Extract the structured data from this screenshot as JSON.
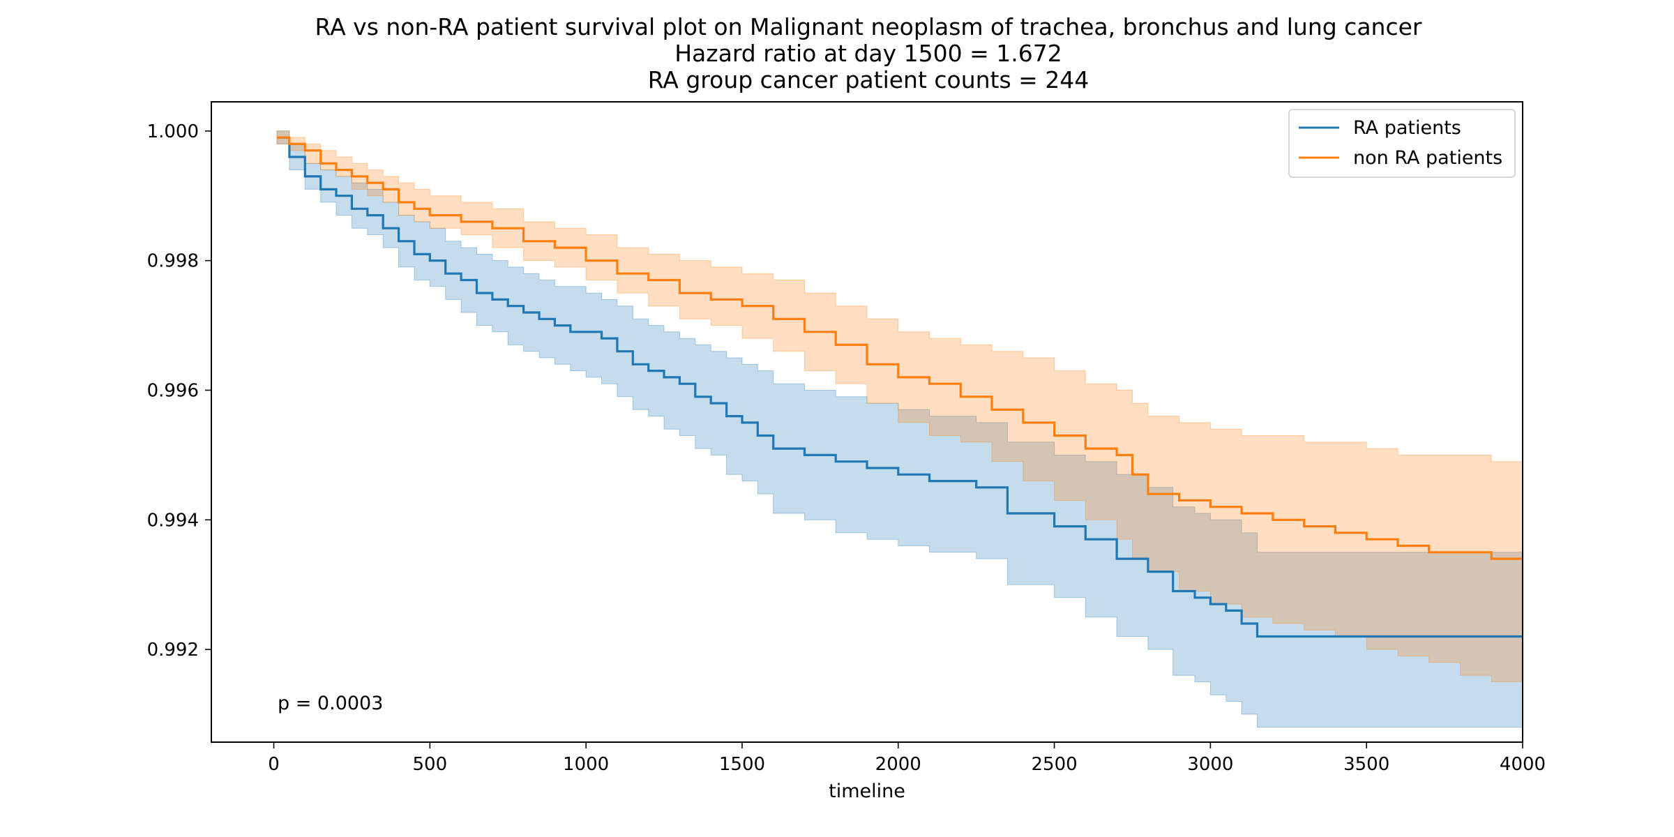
{
  "chart_data": {
    "type": "line",
    "title_lines": [
      "RA vs non-RA patient survival plot on Malignant neoplasm of trachea, bronchus and lung cancer",
      "Hazard ratio at day 1500 = 1.672",
      "RA group cancer patient counts = 244"
    ],
    "xlabel": "timeline",
    "ylabel": "",
    "xlim": [
      -200,
      4000
    ],
    "ylim": [
      0.99057,
      1.00045
    ],
    "x_ticks": [
      0,
      500,
      1000,
      1500,
      2000,
      2500,
      3000,
      3500,
      4000
    ],
    "y_ticks": [
      0.992,
      0.994,
      0.996,
      0.998,
      1.0
    ],
    "x_tick_labels": [
      "0",
      "500",
      "1000",
      "1500",
      "2000",
      "2500",
      "3000",
      "3500",
      "4000"
    ],
    "y_tick_labels": [
      "0.992",
      "0.994",
      "0.996",
      "0.998",
      "1.000"
    ],
    "grid": false,
    "legend_position": "top-right",
    "annotation": "p = 0.0003",
    "series": [
      {
        "name": "RA patients",
        "color": "#1f77b4",
        "x": [
          10,
          50,
          100,
          150,
          200,
          250,
          300,
          350,
          400,
          450,
          500,
          550,
          600,
          650,
          700,
          750,
          800,
          850,
          900,
          950,
          1000,
          1050,
          1100,
          1150,
          1200,
          1250,
          1300,
          1350,
          1400,
          1450,
          1500,
          1550,
          1600,
          1700,
          1800,
          1900,
          2000,
          2100,
          2250,
          2350,
          2400,
          2500,
          2600,
          2700,
          2800,
          2880,
          2950,
          3000,
          3050,
          3100,
          3150,
          3500,
          4000
        ],
        "y": [
          0.9999,
          0.9996,
          0.9993,
          0.9991,
          0.999,
          0.9988,
          0.9987,
          0.9985,
          0.9983,
          0.9981,
          0.998,
          0.9978,
          0.9977,
          0.9975,
          0.9974,
          0.9973,
          0.9972,
          0.9971,
          0.997,
          0.9969,
          0.9969,
          0.9968,
          0.9966,
          0.9964,
          0.9963,
          0.9962,
          0.9961,
          0.9959,
          0.9958,
          0.9956,
          0.9955,
          0.9953,
          0.9951,
          0.995,
          0.9949,
          0.9948,
          0.9947,
          0.9946,
          0.9945,
          0.9941,
          0.9941,
          0.9939,
          0.9937,
          0.9934,
          0.9932,
          0.9929,
          0.9928,
          0.9927,
          0.9926,
          0.9924,
          0.9922,
          0.9922,
          0.9922
        ],
        "ci_upper": [
          1.0,
          0.9998,
          0.9995,
          0.9994,
          0.9993,
          0.9992,
          0.9991,
          0.9989,
          0.9987,
          0.9986,
          0.9985,
          0.9983,
          0.9982,
          0.9981,
          0.998,
          0.9979,
          0.9978,
          0.9977,
          0.9976,
          0.9976,
          0.9975,
          0.9974,
          0.9973,
          0.9971,
          0.997,
          0.9969,
          0.9968,
          0.9967,
          0.9966,
          0.9965,
          0.9964,
          0.9963,
          0.9961,
          0.996,
          0.9959,
          0.9958,
          0.9957,
          0.9956,
          0.9955,
          0.9952,
          0.9952,
          0.995,
          0.9949,
          0.9947,
          0.9945,
          0.9942,
          0.9941,
          0.994,
          0.994,
          0.9938,
          0.9935,
          0.9935,
          0.9935
        ],
        "ci_lower": [
          0.9998,
          0.9994,
          0.9991,
          0.9989,
          0.9987,
          0.9985,
          0.9984,
          0.9982,
          0.9979,
          0.9977,
          0.9976,
          0.9974,
          0.9972,
          0.997,
          0.9969,
          0.9967,
          0.9966,
          0.9965,
          0.9964,
          0.9963,
          0.9962,
          0.9961,
          0.9959,
          0.9957,
          0.9956,
          0.9954,
          0.9953,
          0.9951,
          0.995,
          0.9947,
          0.9946,
          0.9944,
          0.9941,
          0.994,
          0.9938,
          0.9937,
          0.9936,
          0.9935,
          0.9934,
          0.993,
          0.993,
          0.9928,
          0.9925,
          0.9922,
          0.992,
          0.9916,
          0.9915,
          0.9913,
          0.9912,
          0.991,
          0.9908,
          0.9908,
          0.9908
        ]
      },
      {
        "name": "non RA patients",
        "color": "#ff7f0e",
        "x": [
          10,
          50,
          100,
          150,
          200,
          250,
          300,
          350,
          400,
          450,
          500,
          600,
          700,
          800,
          900,
          1000,
          1100,
          1200,
          1300,
          1400,
          1500,
          1600,
          1700,
          1800,
          1900,
          2000,
          2100,
          2200,
          2300,
          2400,
          2500,
          2600,
          2700,
          2750,
          2800,
          2900,
          3000,
          3100,
          3200,
          3300,
          3400,
          3500,
          3600,
          3700,
          3800,
          3900,
          4000
        ],
        "y": [
          0.9999,
          0.9998,
          0.9997,
          0.9995,
          0.9994,
          0.9993,
          0.9992,
          0.9991,
          0.9989,
          0.9988,
          0.9987,
          0.9986,
          0.9985,
          0.9983,
          0.9982,
          0.998,
          0.9978,
          0.9977,
          0.9975,
          0.9974,
          0.9973,
          0.9971,
          0.9969,
          0.9967,
          0.9964,
          0.9962,
          0.9961,
          0.9959,
          0.9957,
          0.9955,
          0.9953,
          0.9951,
          0.995,
          0.9947,
          0.9944,
          0.9943,
          0.9942,
          0.9941,
          0.994,
          0.9939,
          0.9938,
          0.9937,
          0.9936,
          0.9935,
          0.9935,
          0.9934,
          0.9934
        ],
        "ci_upper": [
          1.0,
          0.9999,
          0.9998,
          0.9997,
          0.9996,
          0.9995,
          0.9994,
          0.9993,
          0.9992,
          0.9991,
          0.999,
          0.9989,
          0.9988,
          0.9986,
          0.9985,
          0.9984,
          0.9982,
          0.9981,
          0.998,
          0.9979,
          0.9978,
          0.9977,
          0.9975,
          0.9973,
          0.9971,
          0.9969,
          0.9968,
          0.9967,
          0.9966,
          0.9965,
          0.9963,
          0.9961,
          0.996,
          0.9958,
          0.9956,
          0.9955,
          0.9954,
          0.9953,
          0.9953,
          0.9952,
          0.9952,
          0.9951,
          0.995,
          0.995,
          0.995,
          0.9949,
          0.9949
        ],
        "ci_lower": [
          0.9998,
          0.9997,
          0.9995,
          0.9994,
          0.9993,
          0.9991,
          0.999,
          0.9989,
          0.9987,
          0.9986,
          0.9985,
          0.9984,
          0.9982,
          0.998,
          0.9979,
          0.9977,
          0.9975,
          0.9973,
          0.9971,
          0.997,
          0.9968,
          0.9966,
          0.9963,
          0.9961,
          0.9958,
          0.9955,
          0.9953,
          0.9952,
          0.9949,
          0.9946,
          0.9943,
          0.994,
          0.9937,
          0.9934,
          0.9932,
          0.9929,
          0.9927,
          0.9925,
          0.9924,
          0.9923,
          0.9922,
          0.992,
          0.9919,
          0.9918,
          0.9916,
          0.9915,
          0.9915
        ]
      }
    ]
  }
}
